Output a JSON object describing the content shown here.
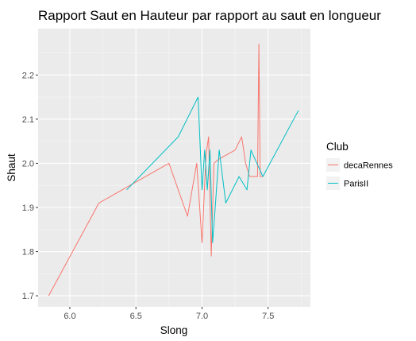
{
  "chart_data": {
    "type": "line",
    "title": "Rapport Saut en Hauteur par rapport au saut en longueur",
    "xlabel": "Slong",
    "ylabel": "Shaut",
    "xlim": [
      5.76,
      7.82
    ],
    "ylim": [
      1.675,
      2.305
    ],
    "x_ticks": [
      6.0,
      6.5,
      7.0,
      7.5
    ],
    "x_tick_labels": [
      "6.0",
      "6.5",
      "7.0",
      "7.5"
    ],
    "y_ticks": [
      1.7,
      1.8,
      1.9,
      2.0,
      2.1,
      2.2
    ],
    "y_tick_labels": [
      "1.7",
      "1.8",
      "1.9",
      "2.0",
      "2.1",
      "2.2"
    ],
    "grid": true,
    "legend": {
      "title": "Club",
      "placement": "right"
    },
    "series": [
      {
        "name": "decaRennes",
        "color": "#F8766D",
        "points": [
          [
            5.84,
            1.7
          ],
          [
            6.22,
            1.91
          ],
          [
            6.75,
            2.0
          ],
          [
            6.89,
            1.88
          ],
          [
            6.96,
            2.0
          ],
          [
            7.0,
            1.82
          ],
          [
            7.03,
            2.02
          ],
          [
            7.05,
            2.06
          ],
          [
            7.07,
            1.79
          ],
          [
            7.09,
            2.0
          ],
          [
            7.13,
            2.01
          ],
          [
            7.25,
            2.03
          ],
          [
            7.3,
            2.06
          ],
          [
            7.33,
            2.0
          ],
          [
            7.36,
            1.97
          ],
          [
            7.42,
            1.97
          ],
          [
            7.43,
            2.27
          ],
          [
            7.44,
            1.97
          ],
          [
            7.46,
            1.97
          ]
        ]
      },
      {
        "name": "ParisII",
        "color": "#00BFC4",
        "points": [
          [
            6.43,
            1.94
          ],
          [
            6.82,
            2.06
          ],
          [
            6.97,
            2.15
          ],
          [
            7.0,
            1.94
          ],
          [
            7.02,
            2.03
          ],
          [
            7.04,
            1.94
          ],
          [
            7.06,
            2.03
          ],
          [
            7.08,
            1.82
          ],
          [
            7.1,
            1.9
          ],
          [
            7.13,
            2.03
          ],
          [
            7.18,
            1.91
          ],
          [
            7.28,
            1.97
          ],
          [
            7.34,
            1.94
          ],
          [
            7.37,
            2.03
          ],
          [
            7.46,
            1.97
          ],
          [
            7.73,
            2.12
          ]
        ]
      }
    ]
  }
}
